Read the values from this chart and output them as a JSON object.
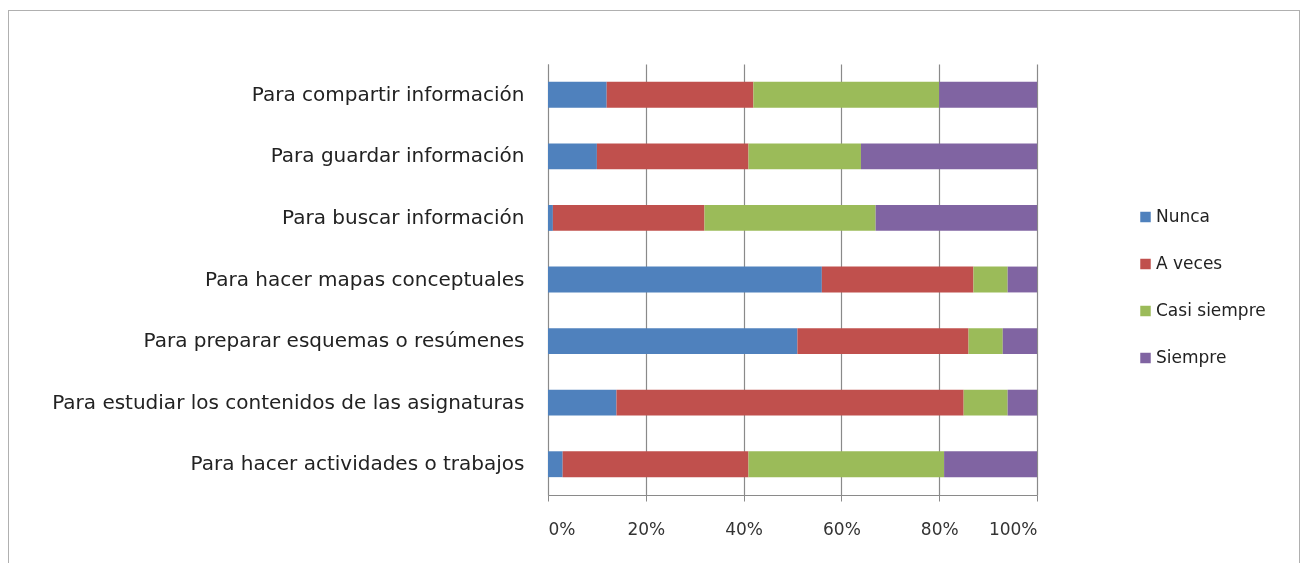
{
  "chart_data": {
    "type": "bar",
    "orientation": "horizontal",
    "stacked": true,
    "categories": [
      "Para compartir información",
      "Para guardar información",
      "Para buscar información",
      "Para hacer mapas conceptuales",
      "Para preparar esquemas o resúmenes",
      "Para estudiar los contenidos de las asignaturas",
      "Para hacer actividades o trabajos"
    ],
    "series": [
      {
        "name": "Nunca",
        "color": "#4f81bd",
        "values": [
          12,
          10,
          1,
          56,
          51,
          14,
          3
        ]
      },
      {
        "name": "A veces",
        "color": "#c0504d",
        "values": [
          30,
          31,
          31,
          31,
          35,
          71,
          38
        ]
      },
      {
        "name": "Casi siempre",
        "color": "#9bbb59",
        "values": [
          38,
          23,
          35,
          7,
          7,
          9,
          40
        ]
      },
      {
        "name": "Siempre",
        "color": "#8064a2",
        "values": [
          20,
          36,
          33,
          6,
          7,
          6,
          19
        ]
      }
    ],
    "xlim": [
      0,
      100
    ],
    "xticks": [
      {
        "value": 0,
        "label": "0%"
      },
      {
        "value": 20,
        "label": "20%"
      },
      {
        "value": 40,
        "label": "40%"
      },
      {
        "value": 60,
        "label": "60%"
      },
      {
        "value": 80,
        "label": "80%"
      },
      {
        "value": 100,
        "label": "100%"
      }
    ],
    "grid": "x",
    "legend": "right"
  }
}
